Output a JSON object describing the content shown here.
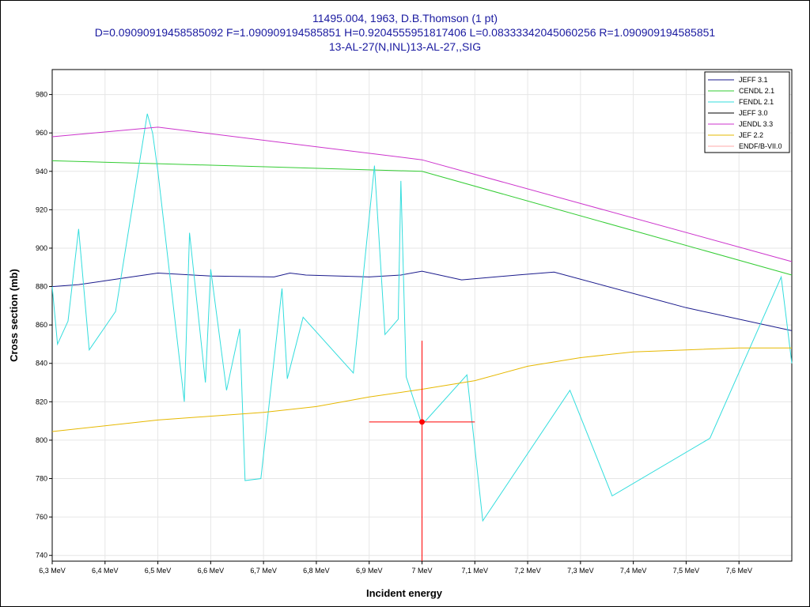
{
  "title": {
    "line1": "11495.004, 1963, D.B.Thomson (1 pt)",
    "line2": "D=0.09090919458585092 F=1.090909194585851 H=0.9204555951817406 L=0.08333342045060256 R=1.090909194585851",
    "line3": "13-AL-27(N,INL)13-AL-27,,SIG"
  },
  "colors": {
    "title": "#1a1aa0",
    "frame": "#000000",
    "grid": "#e6e6e6",
    "marker": "#ff0000"
  },
  "chart_data": {
    "type": "line",
    "xlabel": "Incident energy",
    "ylabel": "Cross section (mb)",
    "xlim": [
      6.3,
      7.7
    ],
    "ylim": [
      737,
      993
    ],
    "x_ticks": [
      {
        "v": 6.3,
        "label": "6,3 MeV"
      },
      {
        "v": 6.4,
        "label": "6,4 MeV"
      },
      {
        "v": 6.5,
        "label": "6,5 MeV"
      },
      {
        "v": 6.6,
        "label": "6,6 MeV"
      },
      {
        "v": 6.7,
        "label": "6,7 MeV"
      },
      {
        "v": 6.8,
        "label": "6,8 MeV"
      },
      {
        "v": 6.9,
        "label": "6,9 MeV"
      },
      {
        "v": 7.0,
        "label": "7 MeV"
      },
      {
        "v": 7.1,
        "label": "7,1 MeV"
      },
      {
        "v": 7.2,
        "label": "7,2 MeV"
      },
      {
        "v": 7.3,
        "label": "7,3 MeV"
      },
      {
        "v": 7.4,
        "label": "7,4 MeV"
      },
      {
        "v": 7.5,
        "label": "7,5 MeV"
      },
      {
        "v": 7.6,
        "label": "7,6 MeV"
      }
    ],
    "y_ticks": [
      {
        "v": 740,
        "label": "740"
      },
      {
        "v": 760,
        "label": "760"
      },
      {
        "v": 780,
        "label": "780"
      },
      {
        "v": 800,
        "label": "800"
      },
      {
        "v": 820,
        "label": "820"
      },
      {
        "v": 840,
        "label": "840"
      },
      {
        "v": 860,
        "label": "860"
      },
      {
        "v": 880,
        "label": "880"
      },
      {
        "v": 900,
        "label": "900"
      },
      {
        "v": 920,
        "label": "920"
      },
      {
        "v": 940,
        "label": "940"
      },
      {
        "v": 960,
        "label": "960"
      },
      {
        "v": 980,
        "label": "980"
      }
    ],
    "legend_position": "top-right",
    "series": [
      {
        "name": "JEFF 3.1",
        "color": "#1a1a8c",
        "x": [
          6.3,
          6.35,
          6.4,
          6.5,
          6.6,
          6.72,
          6.75,
          6.78,
          6.9,
          6.96,
          7.0,
          7.075,
          7.18,
          7.25,
          7.5,
          7.7
        ],
        "y": [
          880,
          881,
          883,
          887,
          885.5,
          885,
          887,
          886,
          885,
          886,
          888,
          883.5,
          886,
          887.5,
          869,
          857
        ]
      },
      {
        "name": "CENDL 2.1",
        "color": "#33cc33",
        "x": [
          6.3,
          6.5,
          7.0,
          7.7
        ],
        "y": [
          945.5,
          944,
          940,
          886
        ]
      },
      {
        "name": "FENDL 2.1",
        "color": "#33dddd",
        "x": [
          6.3,
          6.31,
          6.33,
          6.35,
          6.37,
          6.42,
          6.48,
          6.49,
          6.5,
          6.55,
          6.56,
          6.59,
          6.6,
          6.63,
          6.655,
          6.665,
          6.695,
          6.735,
          6.745,
          6.775,
          6.87,
          6.91,
          6.93,
          6.955,
          6.96,
          6.97,
          7.0,
          7.085,
          7.115,
          7.28,
          7.36,
          7.545,
          7.68,
          7.7
        ],
        "y": [
          880,
          850,
          862,
          910,
          847,
          867,
          970,
          960,
          940,
          820,
          908,
          830,
          889,
          826,
          858,
          779,
          780,
          879,
          832,
          864,
          835,
          943,
          855,
          863,
          935,
          833,
          808,
          834,
          758,
          826,
          771,
          801,
          885,
          840
        ]
      },
      {
        "name": "JEFF 3.0",
        "color": "#000000",
        "x": [],
        "y": []
      },
      {
        "name": "JENDL 3.3",
        "color": "#cc33cc",
        "x": [
          6.3,
          6.5,
          7.0,
          7.7
        ],
        "y": [
          958,
          963,
          946,
          893
        ]
      },
      {
        "name": "JEF 2.2",
        "color": "#e6b800",
        "x": [
          6.3,
          6.5,
          6.7,
          6.8,
          6.9,
          7.0,
          7.1,
          7.2,
          7.3,
          7.4,
          7.5,
          7.6,
          7.7
        ],
        "y": [
          804.5,
          810.5,
          814.5,
          817.5,
          822.5,
          826.5,
          831,
          838.5,
          843,
          846,
          847,
          848,
          848
        ]
      },
      {
        "name": "ENDF/B-VII.0",
        "color": "#ffaaaa",
        "x": [],
        "y": []
      }
    ],
    "data_points": [
      {
        "x": 7.0,
        "y": 809.5,
        "x_err": 0.1,
        "color": "#ff0000"
      }
    ]
  }
}
